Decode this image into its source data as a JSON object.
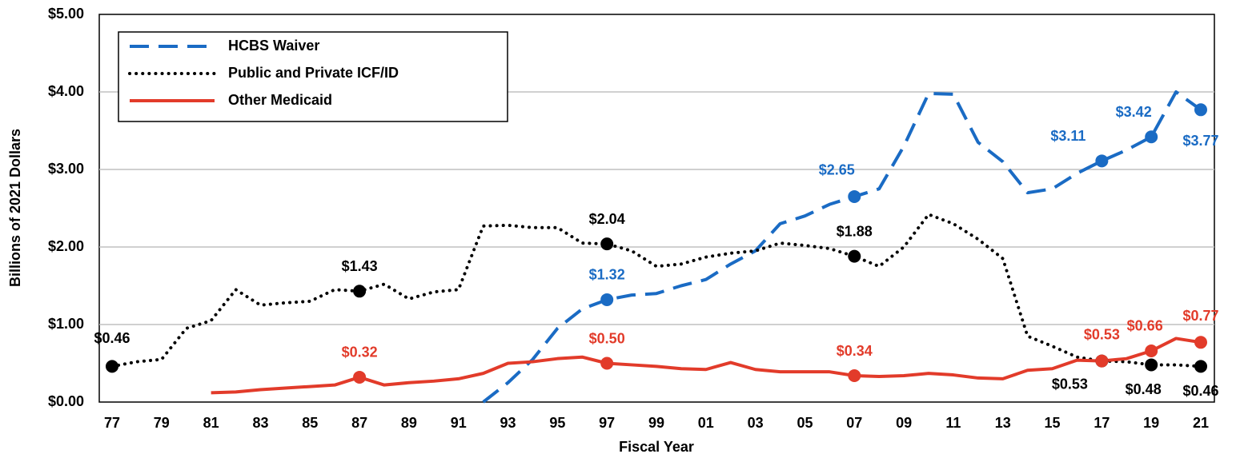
{
  "chart_data": {
    "type": "line",
    "y_label": "Billions of 2021 Dollars",
    "x_label": "Fiscal Year",
    "categories": [
      "77",
      null,
      "79",
      null,
      "81",
      null,
      "83",
      null,
      "85",
      null,
      "87",
      null,
      "89",
      null,
      "91",
      null,
      "93",
      null,
      "95",
      null,
      "97",
      null,
      "99",
      null,
      "01",
      null,
      "03",
      null,
      "05",
      null,
      "07",
      null,
      "09",
      null,
      "11",
      null,
      "13",
      null,
      "15",
      null,
      "17",
      null,
      "19",
      null,
      "21"
    ],
    "series": [
      {
        "name": "HCBS Waiver",
        "color": "#1a6bc4",
        "style": "dashed",
        "values": [
          null,
          null,
          null,
          null,
          null,
          null,
          null,
          null,
          null,
          null,
          null,
          null,
          null,
          null,
          null,
          0.0,
          0.25,
          0.55,
          0.95,
          1.2,
          1.32,
          1.38,
          1.4,
          1.5,
          1.58,
          1.78,
          1.95,
          2.3,
          2.4,
          2.55,
          2.65,
          2.75,
          3.3,
          3.98,
          3.97,
          3.35,
          3.1,
          2.7,
          2.75,
          2.95,
          3.11,
          3.25,
          3.42,
          4.0,
          3.77
        ],
        "value_labels": [
          null,
          null,
          null,
          null,
          null,
          null,
          null,
          null,
          null,
          null,
          null,
          null,
          null,
          null,
          null,
          null,
          null,
          null,
          null,
          null,
          "$1.32",
          null,
          null,
          null,
          null,
          null,
          null,
          null,
          null,
          null,
          "$2.65",
          null,
          null,
          null,
          null,
          null,
          null,
          null,
          null,
          null,
          "$3.11",
          null,
          "$3.42",
          null,
          "$3.77"
        ]
      },
      {
        "name": "Public and Private ICF/ID",
        "color": "#000000",
        "style": "dotted",
        "values": [
          0.46,
          0.52,
          0.55,
          0.95,
          1.05,
          1.45,
          1.25,
          1.28,
          1.3,
          1.45,
          1.43,
          1.52,
          1.33,
          1.42,
          1.45,
          2.27,
          2.28,
          2.25,
          2.25,
          2.05,
          2.04,
          1.95,
          1.75,
          1.78,
          1.87,
          1.92,
          1.95,
          2.05,
          2.02,
          1.98,
          1.88,
          1.75,
          2.0,
          2.42,
          2.3,
          2.1,
          1.85,
          0.85,
          0.72,
          0.58,
          0.53,
          0.52,
          0.48,
          0.48,
          0.46
        ],
        "value_labels": [
          "$0.46",
          null,
          null,
          null,
          null,
          null,
          null,
          null,
          null,
          null,
          "$1.43",
          null,
          null,
          null,
          null,
          null,
          null,
          null,
          null,
          null,
          "$2.04",
          null,
          null,
          null,
          null,
          null,
          null,
          null,
          null,
          null,
          "$1.88",
          null,
          null,
          null,
          null,
          null,
          null,
          null,
          null,
          null,
          "$0.53",
          null,
          "$0.48",
          null,
          "$0.46"
        ]
      },
      {
        "name": "Other Medicaid",
        "color": "#e23b2a",
        "style": "solid",
        "values": [
          null,
          null,
          null,
          null,
          0.12,
          0.13,
          0.16,
          0.18,
          0.2,
          0.22,
          0.32,
          0.22,
          0.25,
          0.27,
          0.3,
          0.37,
          0.5,
          0.52,
          0.56,
          0.58,
          0.5,
          0.48,
          0.46,
          0.43,
          0.42,
          0.51,
          0.42,
          0.39,
          0.39,
          0.39,
          0.34,
          0.33,
          0.34,
          0.37,
          0.35,
          0.31,
          0.3,
          0.41,
          0.43,
          0.54,
          0.53,
          0.56,
          0.66,
          0.82,
          0.77
        ],
        "value_labels": [
          null,
          null,
          null,
          null,
          null,
          null,
          null,
          null,
          null,
          null,
          "$0.32",
          null,
          null,
          null,
          null,
          null,
          null,
          null,
          null,
          null,
          "$0.50",
          null,
          null,
          null,
          null,
          null,
          null,
          null,
          null,
          null,
          "$0.34",
          null,
          null,
          null,
          null,
          null,
          null,
          null,
          null,
          null,
          "$0.53",
          null,
          "$0.66",
          null,
          "$0.77"
        ]
      }
    ],
    "ylim": [
      0,
      5
    ],
    "yticks": [
      {
        "value": 0,
        "label": "$0.00"
      },
      {
        "value": 1,
        "label": "$1.00"
      },
      {
        "value": 2,
        "label": "$2.00"
      },
      {
        "value": 3,
        "label": "$3.00"
      },
      {
        "value": 4,
        "label": "$4.00"
      },
      {
        "value": 5,
        "label": "$5.00"
      }
    ],
    "grid": true,
    "legend": "upper left"
  }
}
